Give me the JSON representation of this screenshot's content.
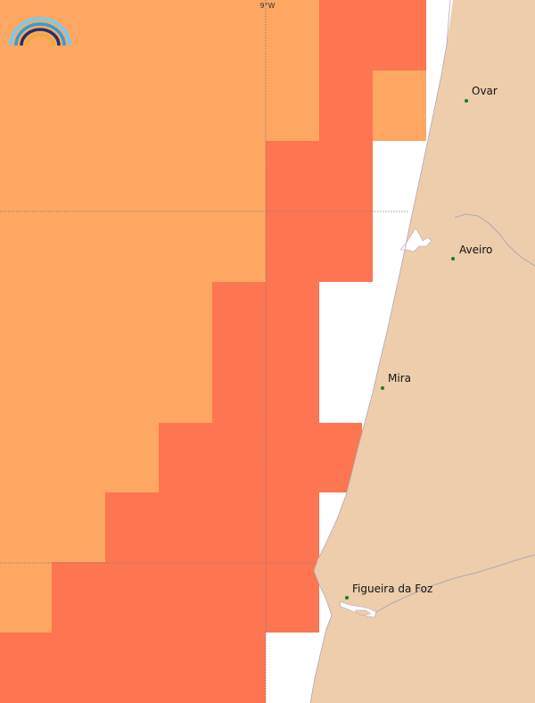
{
  "colors": {
    "cell_light": "#FDA762",
    "cell_dark": "#FE7551",
    "land": "#EDCDAB",
    "water_inland": "#FFFFFF",
    "coast_line": "#B0A8B8",
    "graticule": "#7F7F7F",
    "city_dot": "#1E7A1E"
  },
  "logo": {
    "name": "rainbow-logo-icon"
  },
  "graticule": {
    "lon_label": "9°W"
  },
  "cities": [
    {
      "name": "Ovar"
    },
    {
      "name": "Aveiro"
    },
    {
      "name": "Mira"
    },
    {
      "name": "Figueira da Foz"
    }
  ]
}
